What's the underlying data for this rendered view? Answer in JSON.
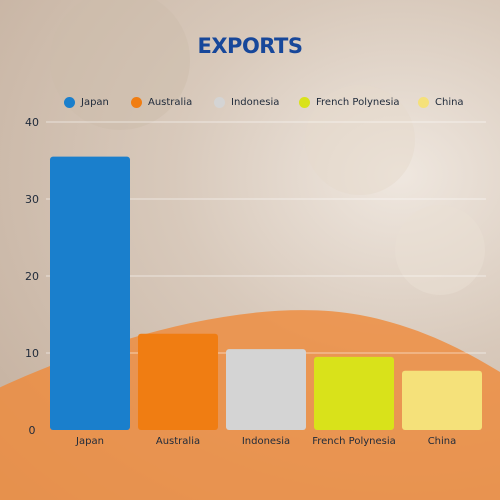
{
  "colors": {
    "title": "#17479a",
    "axis_text": "#1f2a3a",
    "gridline": "#ffffff",
    "wave": "#ef8a3a"
  },
  "chart_data": {
    "type": "bar",
    "title": "EXPORTS",
    "xlabel": "",
    "ylabel": "",
    "categories": [
      "Japan",
      "Australia",
      "Indonesia",
      "French Polynesia",
      "China"
    ],
    "values": [
      35.5,
      12.5,
      10.5,
      9.5,
      7.7
    ],
    "bar_colors": [
      "#1a7fcc",
      "#f07d12",
      "#d4d4d4",
      "#d9e21a",
      "#f5e17a"
    ],
    "ylim": [
      0,
      40
    ],
    "yticks": [
      0,
      10,
      20,
      30,
      40
    ],
    "grid": true,
    "legend_position": "top",
    "legend": [
      {
        "label": "Japan",
        "color": "#1a7fcc"
      },
      {
        "label": "Australia",
        "color": "#f07d12"
      },
      {
        "label": "Indonesia",
        "color": "#d4d4d4"
      },
      {
        "label": "French Polynesia",
        "color": "#d9e21a"
      },
      {
        "label": "China",
        "color": "#f5e17a"
      }
    ]
  }
}
